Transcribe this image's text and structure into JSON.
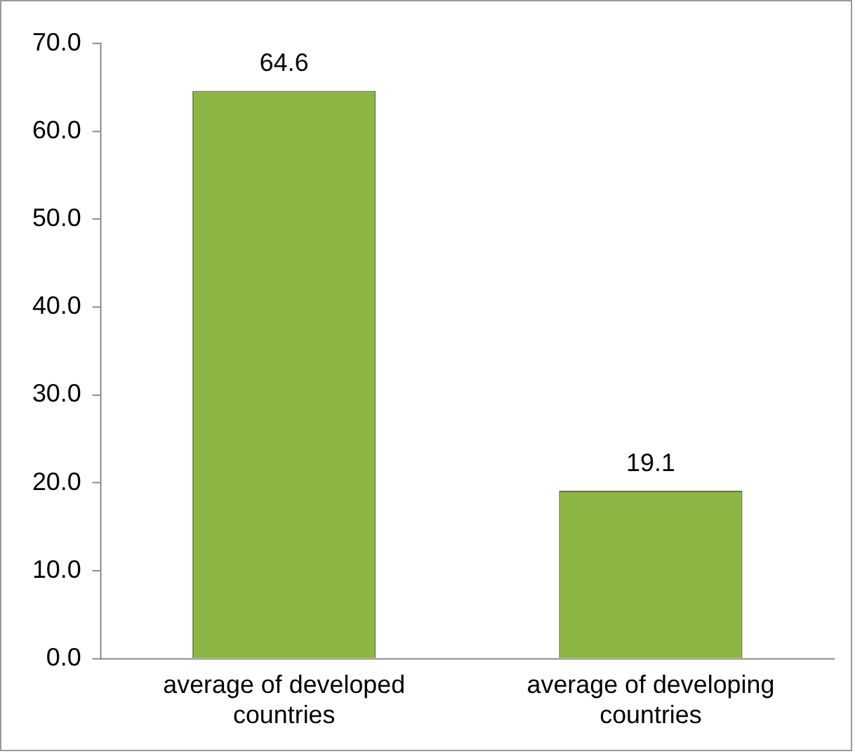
{
  "chart_data": {
    "type": "bar",
    "categories": [
      "average of developed countries",
      "average of developing countries"
    ],
    "values": [
      64.6,
      19.1
    ],
    "color": "#8db543",
    "ylim": [
      0,
      70
    ],
    "yticks": [
      {
        "value": 0,
        "label": "0.0"
      },
      {
        "value": 10,
        "label": "10.0"
      },
      {
        "value": 20,
        "label": "20.0"
      },
      {
        "value": 30,
        "label": "30.0"
      },
      {
        "value": 40,
        "label": "40.0"
      },
      {
        "value": 50,
        "label": "50.0"
      },
      {
        "value": 60,
        "label": "60.0"
      },
      {
        "value": 70,
        "label": "70.0"
      }
    ],
    "grid": false,
    "legend": false,
    "data_labels": true
  }
}
